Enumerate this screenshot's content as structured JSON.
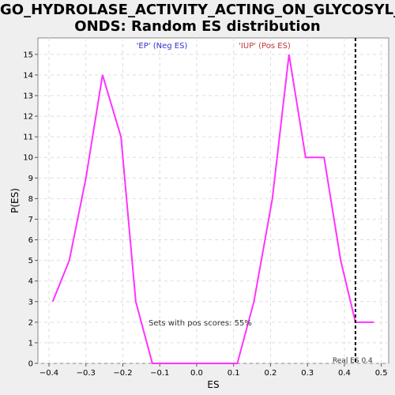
{
  "page": {
    "title": "GO_HYDROLASE_ACTIVITY_ACTING_ON_GLYCOSYL_B\nONDS: Random ES distribution"
  },
  "chart_data": {
    "type": "line",
    "title": "GO_HYDROLASE_ACTIVITY_ACTING_ON_GLYCOSYL_BONDS: Random ES distribution",
    "xlabel": "ES",
    "ylabel": "P(ES)",
    "xlim": [
      -0.43,
      0.52
    ],
    "ylim": [
      0,
      15.8
    ],
    "x_ticks": [
      -0.4,
      -0.3,
      -0.2,
      -0.1,
      0.0,
      0.1,
      0.2,
      0.3,
      0.4,
      0.5
    ],
    "x_tick_labels": [
      "−0.4",
      "−0.3",
      "−0.2",
      "−0.1",
      "0.0",
      "0.1",
      "0.2",
      "0.3",
      "0.4",
      "0.5"
    ],
    "y_ticks": [
      0,
      1,
      2,
      3,
      4,
      5,
      6,
      7,
      8,
      9,
      10,
      11,
      12,
      13,
      14,
      15
    ],
    "grid": true,
    "series": [
      {
        "color": "#ff33ff",
        "x": [
          -0.39,
          -0.345,
          -0.3,
          -0.255,
          -0.205,
          -0.165,
          -0.12,
          -0.075,
          -0.03,
          0.02,
          0.065,
          0.11,
          0.155,
          0.205,
          0.25,
          0.295,
          0.345,
          0.39,
          0.43,
          0.48
        ],
        "y": [
          3,
          5,
          9,
          14,
          11,
          3,
          0,
          0,
          0,
          0,
          0,
          0,
          3,
          8,
          15,
          10,
          10,
          5,
          2,
          2
        ]
      }
    ],
    "legend": [
      {
        "label": "'EP' (Neg ES)",
        "color": "#3333cc"
      },
      {
        "label": "'IUP' (Pos ES)",
        "color": "#cc3333"
      }
    ],
    "real_es": {
      "value": 0.43,
      "label": "Real ES 0.4"
    },
    "annotation": "Sets with pos scores: 55%"
  }
}
